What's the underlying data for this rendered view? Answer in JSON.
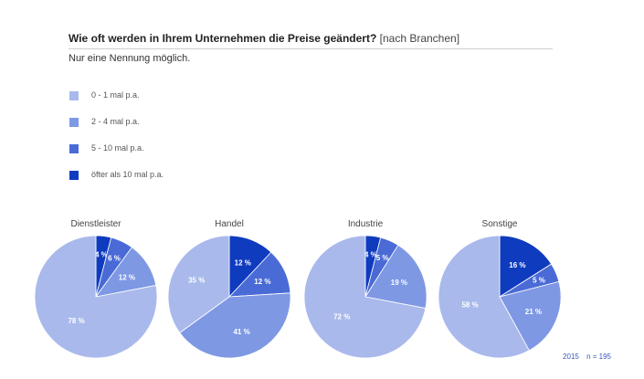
{
  "header": {
    "title": "Wie oft werden in Ihrem Unternehmen die Preise geändert?",
    "title_suffix": "[nach Branchen]",
    "subtitle": "Nur eine Nennung möglich."
  },
  "legend": [
    {
      "label": "0 - 1 mal p.a.",
      "color": "#a9b9ec"
    },
    {
      "label": "2 - 4 mal p.a.",
      "color": "#7e98e4"
    },
    {
      "label": "5 - 10 mal p.a.",
      "color": "#4a6bd6"
    },
    {
      "label": "öfter als 10 mal p.a.",
      "color": "#0f3bbf"
    }
  ],
  "footer": {
    "year": "2015",
    "n": "n = 195"
  },
  "chart_data": {
    "type": "pie",
    "categories": [
      "0 - 1 mal p.a.",
      "2 - 4 mal p.a.",
      "5 - 10 mal p.a.",
      "öfter als 10 mal p.a."
    ],
    "colors": [
      "#a9b9ec",
      "#7e98e4",
      "#4a6bd6",
      "#0f3bbf"
    ],
    "charts": [
      {
        "title": "Dienstleister",
        "values": [
          78,
          12,
          6,
          4
        ],
        "labels": [
          "78 %",
          "12 %",
          "6 %",
          "4 %"
        ]
      },
      {
        "title": "Handel",
        "values": [
          35,
          41,
          12,
          12
        ],
        "labels": [
          "35 %",
          "41 %",
          "12 %",
          "12 %"
        ]
      },
      {
        "title": "Industrie",
        "values": [
          72,
          19,
          5,
          4
        ],
        "labels": [
          "72 %",
          "19 %",
          "5 %",
          "4 %"
        ]
      },
      {
        "title": "Sonstige",
        "values": [
          58,
          21,
          5,
          16
        ],
        "labels": [
          "58 %",
          "21 %",
          "5 %",
          "16 %"
        ]
      }
    ]
  }
}
